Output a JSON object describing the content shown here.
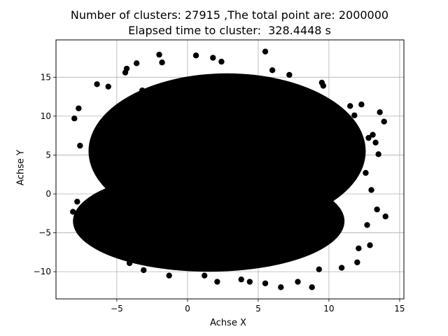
{
  "chart_data": {
    "type": "scatter",
    "title_line1": "Number of clusters: 27915 ,The total point are: 2000000",
    "title_line2": "Elapsed time to cluster:  328.4448 s",
    "xlabel": "Achse X",
    "ylabel": "Achse Y",
    "xlim": [
      -9.3,
      15.3
    ],
    "ylim": [
      -13.5,
      19.8
    ],
    "xticks": [
      -5,
      0,
      5,
      10,
      15
    ],
    "yticks": [
      -10,
      -5,
      0,
      5,
      10,
      15
    ],
    "xtick_labels": [
      "−5",
      "0",
      "5",
      "10",
      "15"
    ],
    "ytick_labels": [
      "−10",
      "−5",
      "0",
      "5",
      "10",
      "15"
    ],
    "grid": true,
    "marker_color": "#000000",
    "bulk_regions": [
      {
        "name": "upper-blob",
        "cx": 2.8,
        "cy": 5.5,
        "rx": 9.8,
        "ry": 10.0
      },
      {
        "name": "lower-blob",
        "cx": 1.5,
        "cy": -3.5,
        "rx": 9.6,
        "ry": 6.5
      }
    ],
    "outlier_points": [
      [
        -8.1,
        -2.3
      ],
      [
        -7.8,
        -1.0
      ],
      [
        -7.5,
        -4.9
      ],
      [
        -7.6,
        6.2
      ],
      [
        -8.0,
        9.7
      ],
      [
        -7.7,
        11.0
      ],
      [
        -6.4,
        14.1
      ],
      [
        -5.6,
        13.8
      ],
      [
        -4.4,
        15.6
      ],
      [
        -4.3,
        16.1
      ],
      [
        -3.6,
        16.8
      ],
      [
        -2.0,
        17.9
      ],
      [
        -1.8,
        16.9
      ],
      [
        0.6,
        17.8
      ],
      [
        1.8,
        17.5
      ],
      [
        2.4,
        17.0
      ],
      [
        5.5,
        18.3
      ],
      [
        6.0,
        15.9
      ],
      [
        7.2,
        15.3
      ],
      [
        9.5,
        14.3
      ],
      [
        9.6,
        13.9
      ],
      [
        11.5,
        11.3
      ],
      [
        11.8,
        10.1
      ],
      [
        12.8,
        7.2
      ],
      [
        13.1,
        7.6
      ],
      [
        13.3,
        6.6
      ],
      [
        13.5,
        5.1
      ],
      [
        12.6,
        2.7
      ],
      [
        13.0,
        0.5
      ],
      [
        13.4,
        -2.0
      ],
      [
        14.0,
        -2.9
      ],
      [
        12.7,
        -4.0
      ],
      [
        12.9,
        -6.6
      ],
      [
        12.1,
        -7.0
      ],
      [
        12.0,
        -8.8
      ],
      [
        10.9,
        -9.5
      ],
      [
        9.3,
        -9.7
      ],
      [
        8.8,
        -12.0
      ],
      [
        7.8,
        -11.3
      ],
      [
        6.6,
        -12.0
      ],
      [
        5.5,
        -11.5
      ],
      [
        4.4,
        -11.3
      ],
      [
        3.8,
        -11.0
      ],
      [
        2.1,
        -11.3
      ],
      [
        1.2,
        -10.5
      ],
      [
        -1.3,
        -10.5
      ],
      [
        -3.1,
        -9.8
      ],
      [
        -4.1,
        -8.9
      ],
      [
        -5.3,
        -7.0
      ],
      [
        -6.1,
        -6.2
      ],
      [
        -7.4,
        -5.2
      ],
      [
        -5.6,
        -0.5
      ],
      [
        -6.0,
        2.5
      ],
      [
        -6.5,
        4.6
      ],
      [
        -5.8,
        9.1
      ],
      [
        -3.2,
        13.3
      ],
      [
        13.9,
        9.3
      ],
      [
        13.6,
        10.5
      ],
      [
        10.3,
        11.0
      ],
      [
        12.3,
        11.5
      ]
    ]
  }
}
